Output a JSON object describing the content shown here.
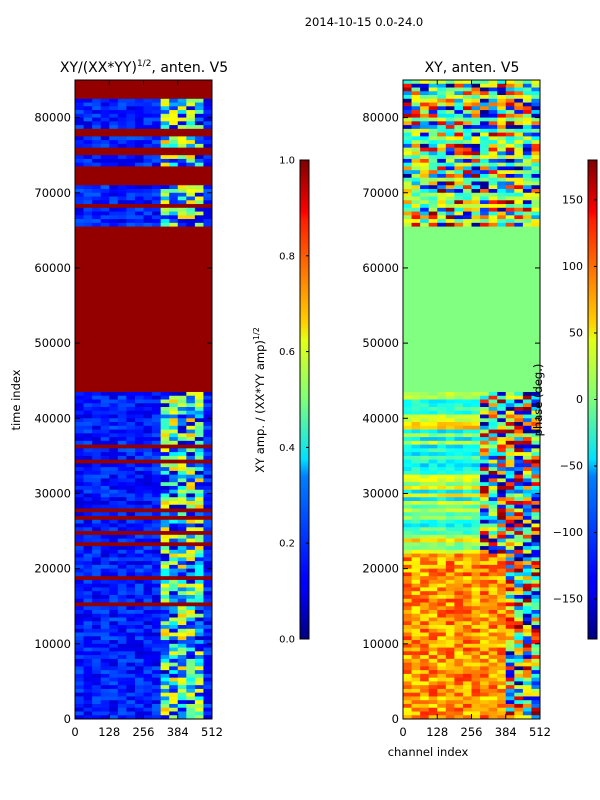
{
  "figure": {
    "suptitle": "2014-10-15 0.0-24.0"
  },
  "chart_data": [
    {
      "type": "heatmap",
      "title_main": "XY/(XX*YY)",
      "title_exp": "1/2",
      "title_tail": ", anten. V5",
      "xlabel": "",
      "ylabel": "time index",
      "xlim": [
        0,
        512
      ],
      "ylim": [
        0,
        85000
      ],
      "x_ticks": [
        0,
        128,
        256,
        384,
        512
      ],
      "y_ticks": [
        0,
        10000,
        20000,
        30000,
        40000,
        50000,
        60000,
        70000,
        80000
      ],
      "colormap": "jet",
      "colorbar": {
        "label_main": "XY amp. / (XX*YY amp)",
        "label_exp": "1/2",
        "range": [
          0.0,
          1.0
        ],
        "ticks": [
          "0.0",
          "0.2",
          "0.4",
          "0.6",
          "0.8",
          "1.0"
        ]
      },
      "saturated_bands": [
        [
          43500,
          65500
        ],
        [
          70800,
          72800
        ],
        [
          74800,
          76000
        ],
        [
          83000,
          85000
        ]
      ]
    },
    {
      "type": "heatmap",
      "title_main": "XY, anten. V5",
      "xlabel": "channel index",
      "ylabel": "",
      "xlim": [
        0,
        512
      ],
      "ylim": [
        0,
        85000
      ],
      "x_ticks": [
        0,
        128,
        256,
        384,
        512
      ],
      "y_ticks": [
        0,
        10000,
        20000,
        30000,
        40000,
        50000,
        60000,
        70000,
        80000
      ],
      "colormap": "jet",
      "colorbar": {
        "label": "phase (deg.)",
        "range": [
          -180,
          180
        ],
        "ticks": [
          -150,
          -100,
          -50,
          0,
          50,
          100,
          150
        ]
      },
      "flat_band": [
        43500,
        65500
      ]
    }
  ]
}
